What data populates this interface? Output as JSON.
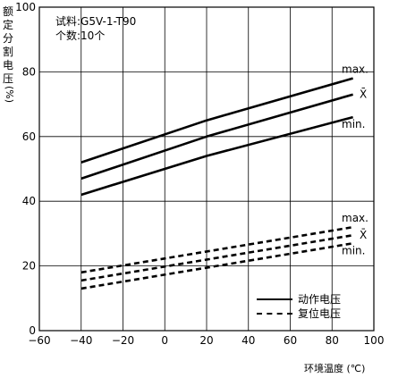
{
  "chart_data": {
    "type": "line",
    "ylabel_chars": [
      "额",
      "定",
      "分",
      "割",
      "电",
      "压"
    ],
    "ylabel_unit": "(%)",
    "xlabel": "环境温度 (℃)",
    "note": {
      "specimen": "试料:G5V-1-T90",
      "count": "个数:10个"
    },
    "xlim": [
      -60,
      100
    ],
    "ylim": [
      0,
      100
    ],
    "x_ticks": [
      -60,
      -40,
      -20,
      0,
      20,
      40,
      60,
      80,
      100
    ],
    "y_ticks": [
      0,
      20,
      40,
      60,
      80,
      100
    ],
    "x_tick_labels": [
      "−60",
      "−40",
      "−20",
      "0",
      "20",
      "40",
      "60",
      "80",
      "100"
    ],
    "y_tick_labels": [
      "0",
      "20",
      "40",
      "60",
      "80",
      "100"
    ],
    "grid": true,
    "legend": {
      "operate": "动作电压",
      "release": "复位电压"
    },
    "series": [
      {
        "name": "max.",
        "group": "operate",
        "style": "solid",
        "x": [
          -40,
          20,
          90
        ],
        "y": [
          52,
          65,
          78
        ]
      },
      {
        "name": "X̄",
        "group": "operate",
        "style": "solid",
        "x": [
          -40,
          20,
          90
        ],
        "y": [
          47,
          60,
          73
        ]
      },
      {
        "name": "min.",
        "group": "operate",
        "style": "solid",
        "x": [
          -40,
          20,
          90
        ],
        "y": [
          42,
          54,
          66
        ]
      },
      {
        "name": "max.",
        "group": "release",
        "style": "dashed",
        "x": [
          -40,
          90
        ],
        "y": [
          18,
          32
        ]
      },
      {
        "name": "X̄",
        "group": "release",
        "style": "dashed",
        "x": [
          -40,
          90
        ],
        "y": [
          15.5,
          29.5
        ]
      },
      {
        "name": "min.",
        "group": "release",
        "style": "dashed",
        "x": [
          -40,
          90
        ],
        "y": [
          13,
          27
        ]
      }
    ]
  }
}
